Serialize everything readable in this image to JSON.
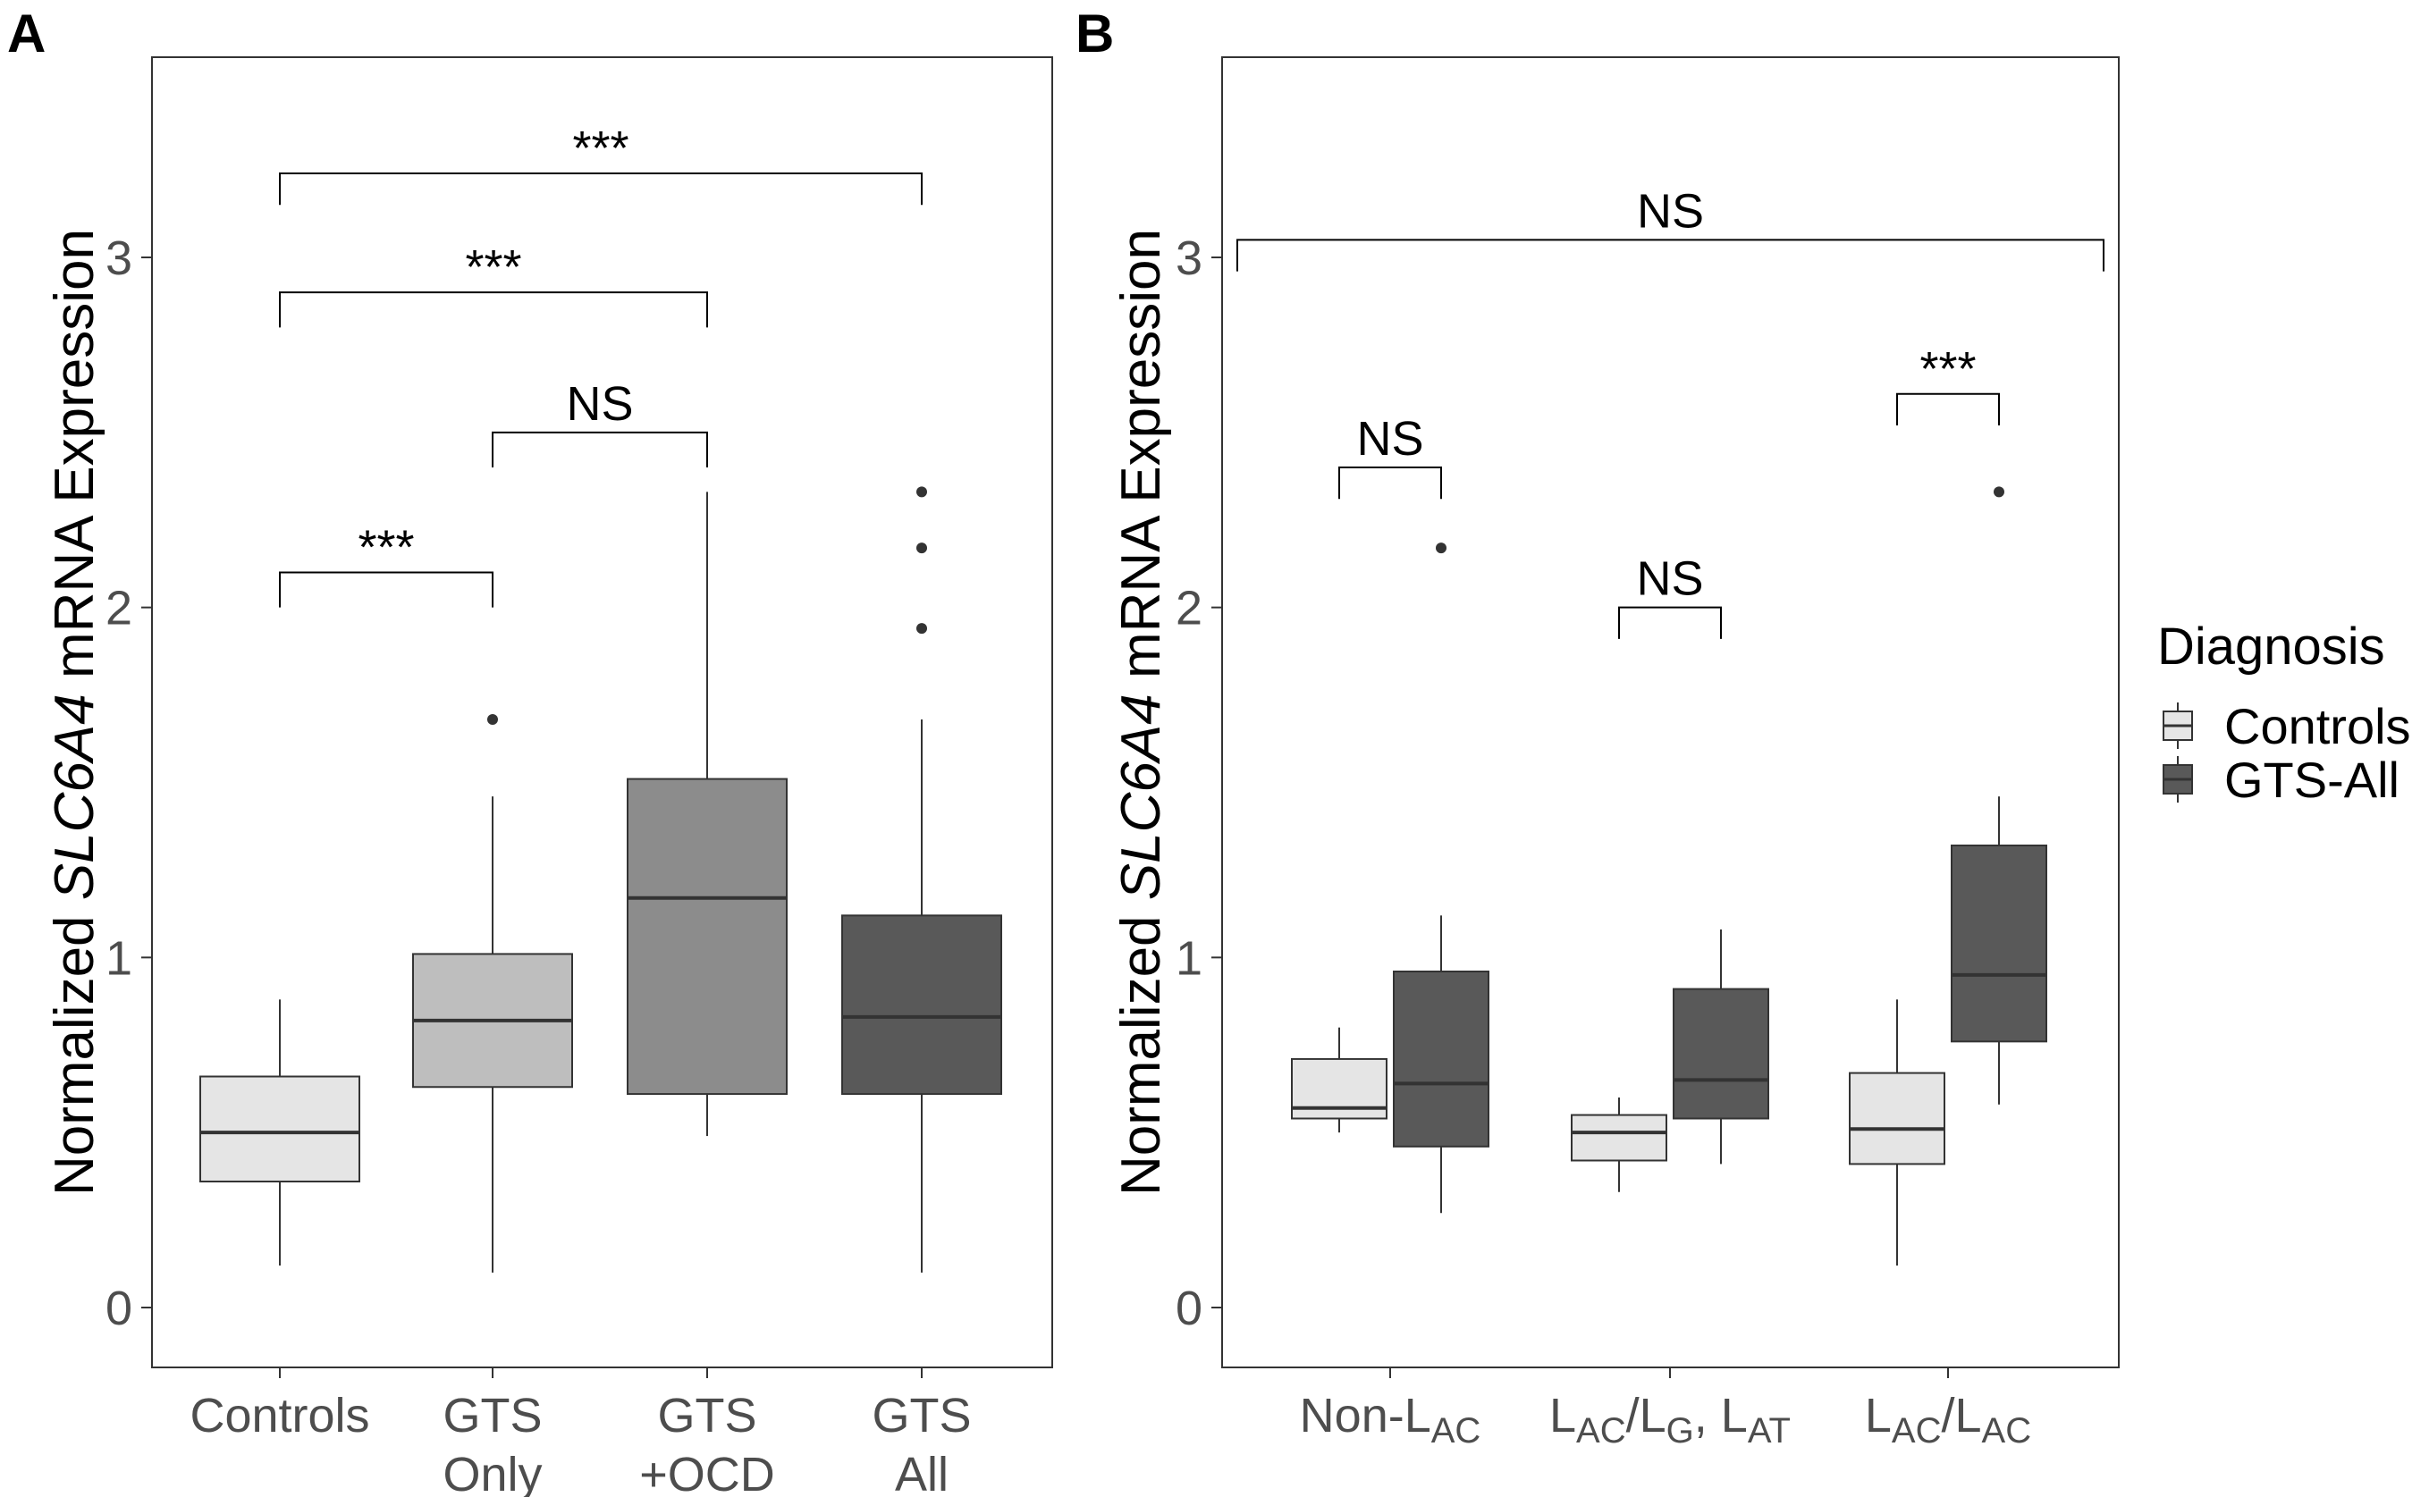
{
  "chart_data": [
    {
      "panel": "A",
      "type": "box",
      "ylabel": {
        "pre": "Normalized ",
        "gene": "SLC6A4",
        "post": " mRNA Expression"
      },
      "ylim": [
        -0.17,
        3.57
      ],
      "yticks": [
        0,
        1,
        2,
        3
      ],
      "categories": [
        {
          "lines": [
            "Controls"
          ]
        },
        {
          "lines": [
            "GTS",
            "Only"
          ]
        },
        {
          "lines": [
            "GTS",
            "+OCD"
          ]
        },
        {
          "lines": [
            "GTS",
            "All"
          ]
        }
      ],
      "boxes": [
        {
          "cat": 0,
          "fill": "#e5e5e5",
          "q1": 0.36,
          "median": 0.5,
          "q3": 0.66,
          "wlo": 0.12,
          "whi": 0.88,
          "outliers": []
        },
        {
          "cat": 1,
          "fill": "#bebebe",
          "q1": 0.63,
          "median": 0.82,
          "q3": 1.01,
          "wlo": 0.1,
          "whi": 1.46,
          "outliers": [
            1.68
          ]
        },
        {
          "cat": 2,
          "fill": "#8c8c8c",
          "q1": 0.61,
          "median": 1.17,
          "q3": 1.51,
          "wlo": 0.49,
          "whi": 2.33,
          "outliers": []
        },
        {
          "cat": 3,
          "fill": "#595959",
          "q1": 0.61,
          "median": 0.83,
          "q3": 1.12,
          "wlo": 0.1,
          "whi": 1.68,
          "outliers": [
            1.94,
            2.17,
            2.33
          ]
        }
      ],
      "brackets": [
        {
          "from": 0,
          "to": 3,
          "y": 3.24,
          "drop": 0.09,
          "label": "***"
        },
        {
          "from": 0,
          "to": 2,
          "y": 2.9,
          "drop": 0.1,
          "label": "***"
        },
        {
          "from": 1,
          "to": 2,
          "y": 2.5,
          "drop": 0.1,
          "label": "NS"
        },
        {
          "from": 0,
          "to": 1,
          "y": 2.1,
          "drop": 0.1,
          "label": "***"
        }
      ]
    },
    {
      "panel": "B",
      "type": "box",
      "ylabel": {
        "pre": "Normalized ",
        "gene": "SLC6A4",
        "post": " mRNA Expression"
      },
      "ylim": [
        -0.17,
        3.57
      ],
      "yticks": [
        0,
        1,
        2,
        3
      ],
      "categories": [
        {
          "parts": [
            [
              "Non-L",
              ""
            ],
            [
              "AC",
              "sub"
            ]
          ]
        },
        {
          "parts": [
            [
              "L",
              ""
            ],
            [
              "AC",
              "sub"
            ],
            [
              "/L",
              ""
            ],
            [
              "G",
              "sub"
            ],
            [
              ", L",
              ""
            ],
            [
              "AT",
              "sub"
            ]
          ]
        },
        {
          "parts": [
            [
              "L",
              ""
            ],
            [
              "AC",
              "sub"
            ],
            [
              "/L",
              ""
            ],
            [
              "AC",
              "sub"
            ]
          ]
        }
      ],
      "boxes": [
        {
          "cat": 0,
          "group": "Controls",
          "fill": "#e5e5e5",
          "q1": 0.54,
          "median": 0.57,
          "q3": 0.71,
          "wlo": 0.5,
          "whi": 0.8,
          "outliers": []
        },
        {
          "cat": 0,
          "group": "GTS-All",
          "fill": "#595959",
          "q1": 0.46,
          "median": 0.64,
          "q3": 0.96,
          "wlo": 0.27,
          "whi": 1.12,
          "outliers": [
            2.17
          ]
        },
        {
          "cat": 1,
          "group": "Controls",
          "fill": "#e5e5e5",
          "q1": 0.42,
          "median": 0.5,
          "q3": 0.55,
          "wlo": 0.33,
          "whi": 0.6,
          "outliers": []
        },
        {
          "cat": 1,
          "group": "GTS-All",
          "fill": "#595959",
          "q1": 0.54,
          "median": 0.65,
          "q3": 0.91,
          "wlo": 0.41,
          "whi": 1.08,
          "outliers": []
        },
        {
          "cat": 2,
          "group": "Controls",
          "fill": "#e5e5e5",
          "q1": 0.41,
          "median": 0.51,
          "q3": 0.67,
          "wlo": 0.12,
          "whi": 0.88,
          "outliers": []
        },
        {
          "cat": 2,
          "group": "GTS-All",
          "fill": "#595959",
          "q1": 0.76,
          "median": 0.95,
          "q3": 1.32,
          "wlo": 0.58,
          "whi": 1.46,
          "outliers": [
            2.33
          ]
        }
      ],
      "brackets": [
        {
          "x_from": [
            0,
            -1
          ],
          "x_to": [
            2,
            1
          ],
          "y": 3.05,
          "drop": 0.09,
          "label": "NS",
          "full": true
        },
        {
          "x_from": [
            0,
            -1
          ],
          "x_to": [
            0,
            1
          ],
          "y": 2.4,
          "drop": 0.09,
          "label": "NS"
        },
        {
          "x_from": [
            1,
            -1
          ],
          "x_to": [
            1,
            1
          ],
          "y": 2.0,
          "drop": 0.09,
          "label": "NS"
        },
        {
          "x_from": [
            2,
            -1
          ],
          "x_to": [
            2,
            1
          ],
          "y": 2.61,
          "drop": 0.09,
          "label": "***"
        }
      ],
      "legend": {
        "title": "Diagnosis",
        "position": "right",
        "items": [
          {
            "label": "Controls",
            "fill": "#e5e5e5"
          },
          {
            "label": "GTS-All",
            "fill": "#595959"
          }
        ]
      }
    }
  ]
}
